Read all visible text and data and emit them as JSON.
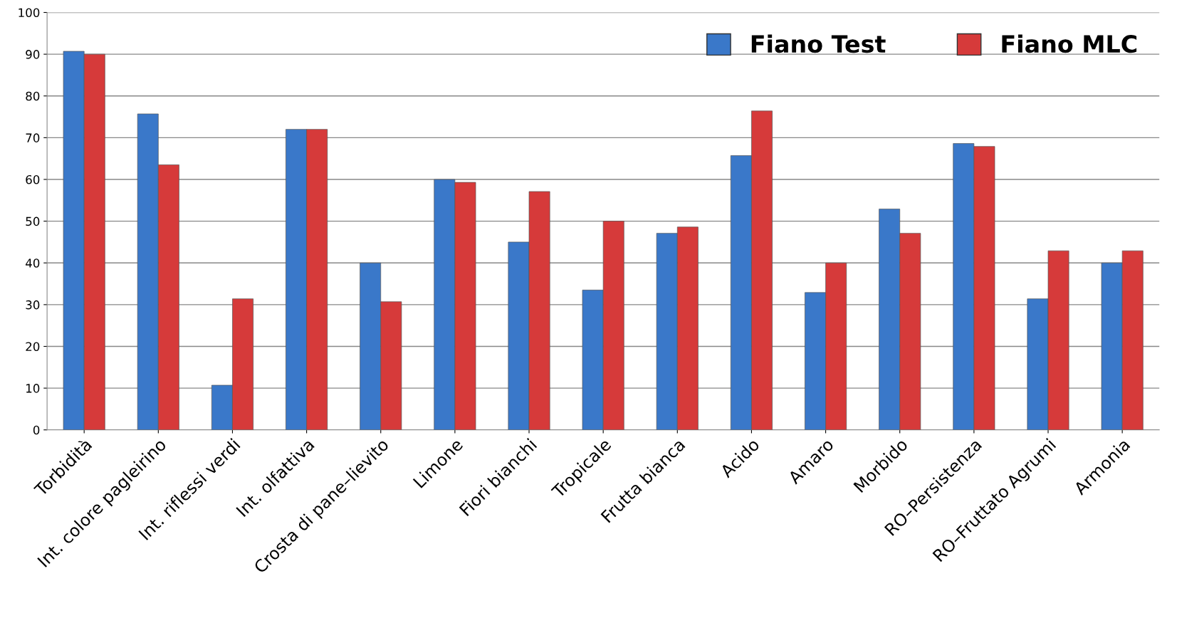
{
  "chart_data": {
    "type": "bar",
    "categories": [
      "Torbidità",
      "Int. colore pagleirino",
      "Int. riflessi verdi",
      "Int. olfattiva",
      "Crosta di pane–lievito",
      "Limone",
      "Fiori bianchi",
      "Tropicale",
      "Frutta bianca",
      "Acido",
      "Amaro",
      "Morbido",
      "RO–Persistenza",
      "RO–Fruttato Agrumi",
      "Armonia"
    ],
    "series": [
      {
        "name": "Fiano Test",
        "color": "#3a78c9",
        "values": [
          90.7,
          75.7,
          10.7,
          72,
          40,
          60,
          45,
          33.5,
          47.1,
          65.7,
          32.9,
          52.9,
          68.6,
          31.4,
          40
        ]
      },
      {
        "name": "Fiano MLC",
        "color": "#d63a3a",
        "values": [
          90,
          63.5,
          31.4,
          72,
          30.7,
          59.3,
          57.1,
          50,
          48.6,
          76.4,
          40,
          47.1,
          67.9,
          42.9,
          42.9
        ]
      }
    ],
    "ylim": [
      0,
      100
    ],
    "yticks": [
      0,
      10,
      20,
      30,
      40,
      50,
      60,
      70,
      80,
      90,
      100
    ],
    "grid": "y",
    "legend": "top right"
  }
}
